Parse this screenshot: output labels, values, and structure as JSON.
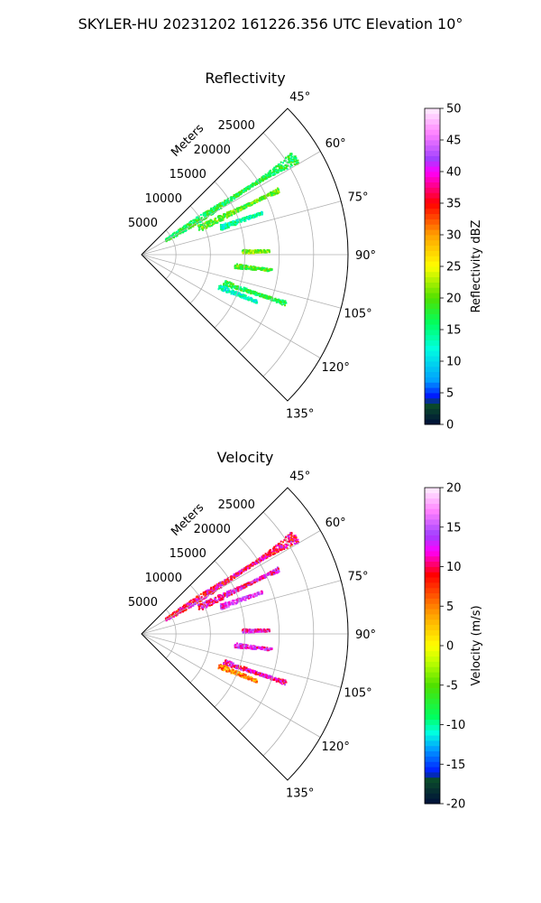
{
  "figure": {
    "title": "SKYLER-HU  20231202  161226.356 UTC Elevation 10°"
  },
  "chart_data": [
    {
      "type": "heatmap",
      "projection": "polar-sector",
      "title": "Reflectivity",
      "range_label": "Meters",
      "range_ticks": [
        5000,
        10000,
        15000,
        20000,
        25000
      ],
      "range_max": 30000,
      "azimuth_range": [
        45,
        135
      ],
      "azimuth_ticks": [
        "45°",
        "60°",
        "75°",
        "90°",
        "105°",
        "120°",
        "135°"
      ],
      "colorbar": {
        "label": "Reflectivity dBZ",
        "min": 0,
        "max": 50,
        "ticks": [
          0,
          5,
          10,
          15,
          20,
          25,
          30,
          35,
          40,
          45,
          50
        ],
        "stops": [
          [
            0,
            "#000e3a"
          ],
          [
            3,
            "#0a4a2a"
          ],
          [
            4.5,
            "#0018ff"
          ],
          [
            7,
            "#00a0ff"
          ],
          [
            12,
            "#00ffe0"
          ],
          [
            16,
            "#00ff60"
          ],
          [
            20,
            "#50e000"
          ],
          [
            25,
            "#ffff00"
          ],
          [
            30,
            "#ffa000"
          ],
          [
            35,
            "#ff0000"
          ],
          [
            40,
            "#ff00ff"
          ],
          [
            42,
            "#a040ff"
          ],
          [
            46,
            "#ff80ff"
          ],
          [
            50,
            "#fff0ff"
          ]
        ]
      },
      "echoes": [
        {
          "az": 57.5,
          "r": [
            4000,
            26500
          ],
          "value": 17
        },
        {
          "az": 64.5,
          "r": [
            9000,
            22000
          ],
          "value": 20
        },
        {
          "az": 70.5,
          "r": [
            12000,
            18500
          ],
          "value": 14
        },
        {
          "az": 88.0,
          "r": [
            14500,
            18500
          ],
          "value": 21
        },
        {
          "az": 96.5,
          "r": [
            13500,
            19000
          ],
          "value": 19
        },
        {
          "az": 108.5,
          "r": [
            12500,
            22000
          ],
          "value": 17
        },
        {
          "az": 112.0,
          "r": [
            12000,
            18000
          ],
          "value": 13
        }
      ],
      "grid": true
    },
    {
      "type": "heatmap",
      "projection": "polar-sector",
      "title": "Velocity",
      "range_label": "Meters",
      "range_ticks": [
        5000,
        10000,
        15000,
        20000,
        25000
      ],
      "range_max": 30000,
      "azimuth_range": [
        45,
        135
      ],
      "azimuth_ticks": [
        "45°",
        "60°",
        "75°",
        "90°",
        "105°",
        "120°",
        "135°"
      ],
      "colorbar": {
        "label": "Velocity (m/s)",
        "min": -20,
        "max": 20,
        "ticks": [
          -20,
          -15,
          -10,
          -5,
          0,
          5,
          10,
          15,
          20
        ],
        "stops": [
          [
            -20,
            "#000e3a"
          ],
          [
            -17,
            "#0a4a2a"
          ],
          [
            -16,
            "#0018ff"
          ],
          [
            -13,
            "#00a0ff"
          ],
          [
            -11,
            "#00ffe0"
          ],
          [
            -9,
            "#00ff60"
          ],
          [
            -5,
            "#50e000"
          ],
          [
            -2,
            "#c0ff00"
          ],
          [
            0,
            "#ffff00"
          ],
          [
            4,
            "#ffa000"
          ],
          [
            9,
            "#ff0000"
          ],
          [
            12,
            "#ff00ff"
          ],
          [
            14,
            "#a040ff"
          ],
          [
            17,
            "#ff80ff"
          ],
          [
            20,
            "#fff0ff"
          ]
        ]
      },
      "echoes": [
        {
          "az": 57.5,
          "r": [
            4000,
            26500
          ],
          "value": 10
        },
        {
          "az": 64.5,
          "r": [
            9000,
            22000
          ],
          "value": 12
        },
        {
          "az": 70.5,
          "r": [
            12000,
            18500
          ],
          "value": 14
        },
        {
          "az": 88.0,
          "r": [
            14500,
            18500
          ],
          "value": 12
        },
        {
          "az": 96.5,
          "r": [
            13500,
            19000
          ],
          "value": 13
        },
        {
          "az": 108.5,
          "r": [
            12500,
            22000
          ],
          "value": 11
        },
        {
          "az": 112.0,
          "r": [
            12000,
            18000
          ],
          "value": 5
        }
      ],
      "grid": true
    }
  ]
}
